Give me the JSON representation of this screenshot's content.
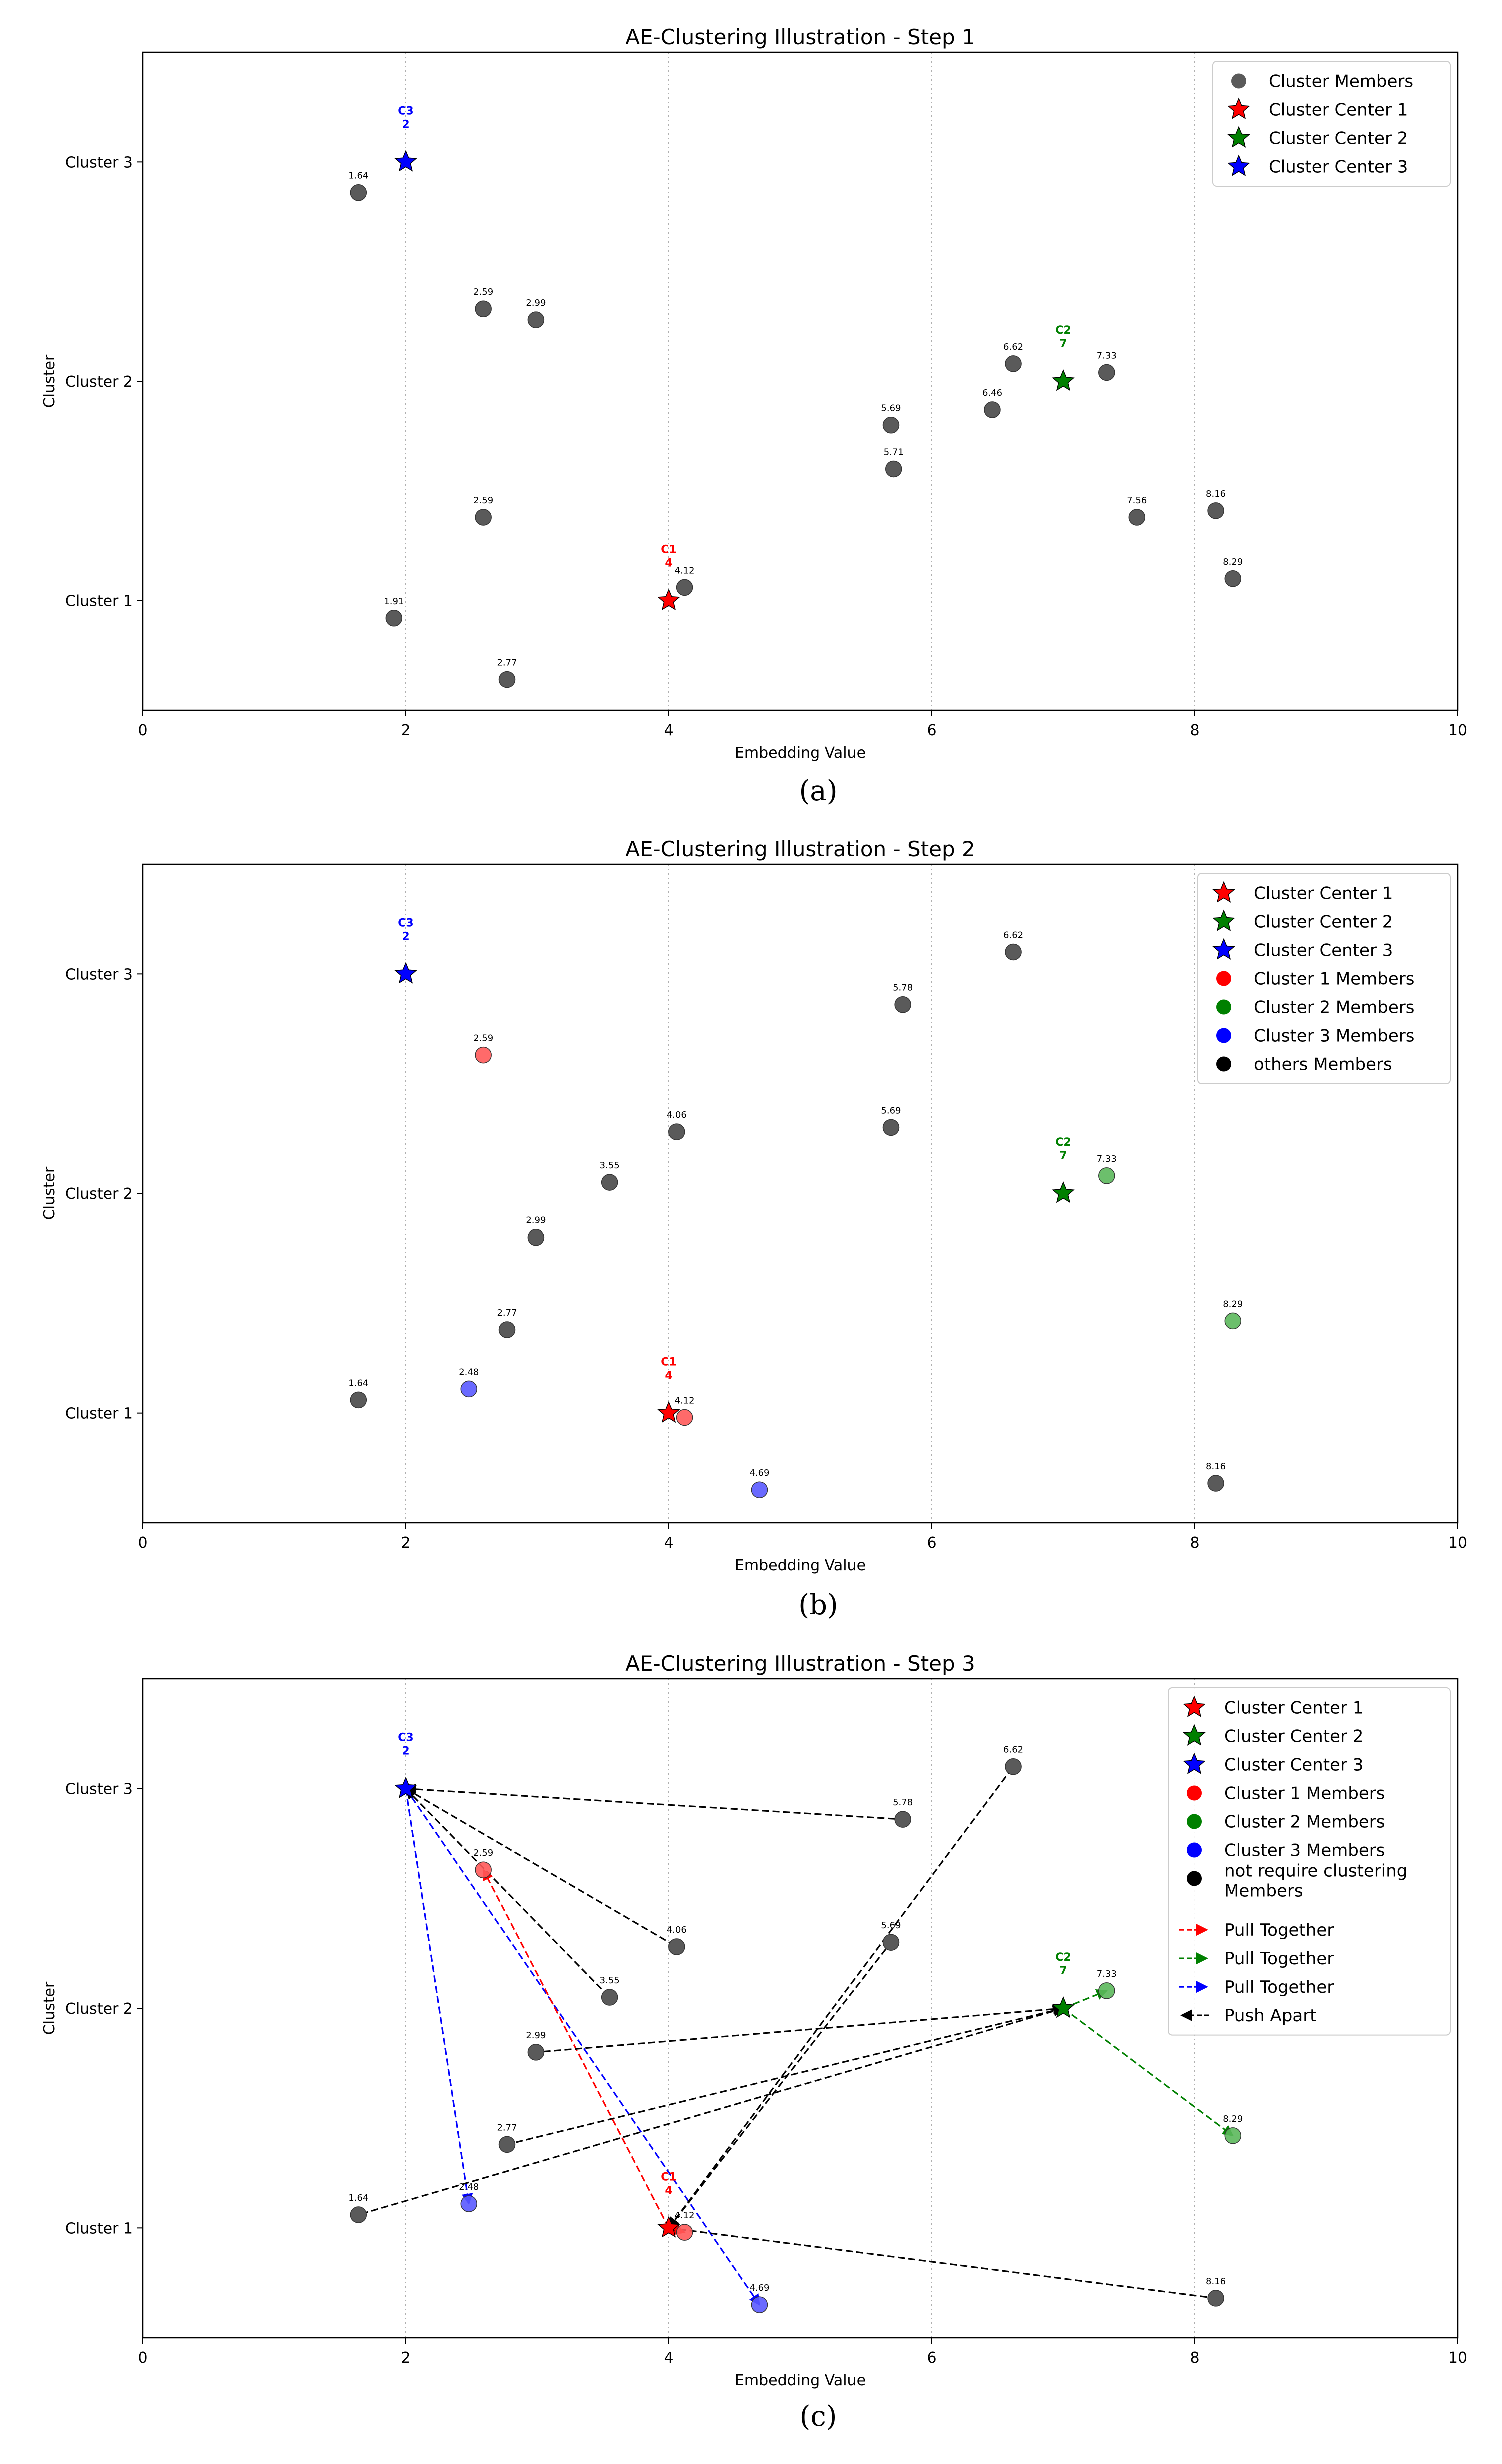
{
  "chart_data": [
    {
      "type": "scatter",
      "title": "AE-Clustering Illustration - Step 1",
      "xlabel": "Embedding Value",
      "ylabel": "Cluster",
      "xlim": [
        0,
        10
      ],
      "ylim": [
        0.5,
        3.5
      ],
      "xticks": [
        "0",
        "2",
        "4",
        "6",
        "8",
        "10"
      ],
      "yticks": [
        {
          "value": 1,
          "label": "Cluster 1"
        },
        {
          "value": 2,
          "label": "Cluster 2"
        },
        {
          "value": 3,
          "label": "Cluster 3"
        }
      ],
      "grid": "vertical dotted",
      "legend_position": "top-right",
      "caption": "(a)",
      "legend": [
        {
          "label": "Cluster Members",
          "marker": "circle",
          "color": "#5a5a5a"
        },
        {
          "label": "Cluster Center 1",
          "marker": "star",
          "color": "#ff0000"
        },
        {
          "label": "Cluster Center 2",
          "marker": "star",
          "color": "#008000"
        },
        {
          "label": "Cluster Center 3",
          "marker": "star",
          "color": "#0000ff"
        }
      ],
      "centers": [
        {
          "name": "C1",
          "value": "4",
          "x": 4,
          "y": 1,
          "color": "#ff0000"
        },
        {
          "name": "C2",
          "value": "7",
          "x": 7,
          "y": 2,
          "color": "#008000"
        },
        {
          "name": "C3",
          "value": "2",
          "x": 2,
          "y": 3,
          "color": "#0000ff"
        }
      ],
      "points": [
        {
          "x": 1.64,
          "y": 2.86,
          "label": "1.64",
          "group": "other"
        },
        {
          "x": 2.59,
          "y": 2.33,
          "label": "2.59",
          "group": "other"
        },
        {
          "x": 2.99,
          "y": 2.28,
          "label": "2.99",
          "group": "other"
        },
        {
          "x": 6.62,
          "y": 2.08,
          "label": "6.62",
          "group": "other"
        },
        {
          "x": 7.33,
          "y": 2.04,
          "label": "7.33",
          "group": "other"
        },
        {
          "x": 6.46,
          "y": 1.87,
          "label": "6.46",
          "group": "other"
        },
        {
          "x": 5.69,
          "y": 1.8,
          "label": "5.69",
          "group": "other"
        },
        {
          "x": 5.71,
          "y": 1.6,
          "label": "5.71",
          "group": "other"
        },
        {
          "x": 2.59,
          "y": 1.38,
          "label": "2.59",
          "group": "other"
        },
        {
          "x": 7.56,
          "y": 1.38,
          "label": "7.56",
          "group": "other"
        },
        {
          "x": 8.16,
          "y": 1.41,
          "label": "8.16",
          "group": "other"
        },
        {
          "x": 8.29,
          "y": 1.1,
          "label": "8.29",
          "group": "other"
        },
        {
          "x": 4.12,
          "y": 1.06,
          "label": "4.12",
          "group": "other"
        },
        {
          "x": 1.91,
          "y": 0.92,
          "label": "1.91",
          "group": "other"
        },
        {
          "x": 2.77,
          "y": 0.64,
          "label": "2.77",
          "group": "other"
        }
      ],
      "arrows": []
    },
    {
      "type": "scatter",
      "title": "AE-Clustering Illustration - Step 2",
      "xlabel": "Embedding Value",
      "ylabel": "Cluster",
      "xlim": [
        0,
        10
      ],
      "ylim": [
        0.5,
        3.5
      ],
      "xticks": [
        "0",
        "2",
        "4",
        "6",
        "8",
        "10"
      ],
      "yticks": [
        {
          "value": 1,
          "label": "Cluster 1"
        },
        {
          "value": 2,
          "label": "Cluster 2"
        },
        {
          "value": 3,
          "label": "Cluster 3"
        }
      ],
      "grid": "vertical dotted",
      "legend_position": "top-right",
      "caption": "(b)",
      "legend": [
        {
          "label": "Cluster Center 1",
          "marker": "star",
          "color": "#ff0000"
        },
        {
          "label": "Cluster Center 2",
          "marker": "star",
          "color": "#008000"
        },
        {
          "label": "Cluster Center 3",
          "marker": "star",
          "color": "#0000ff"
        },
        {
          "label": "Cluster 1 Members",
          "marker": "circle",
          "color": "#ff0000"
        },
        {
          "label": "Cluster 2 Members",
          "marker": "circle",
          "color": "#008000"
        },
        {
          "label": "Cluster 3 Members",
          "marker": "circle",
          "color": "#0000ff"
        },
        {
          "label": "others Members",
          "marker": "circle",
          "color": "#000000"
        }
      ],
      "centers": [
        {
          "name": "C1",
          "value": "4",
          "x": 4,
          "y": 1,
          "color": "#ff0000"
        },
        {
          "name": "C2",
          "value": "7",
          "x": 7,
          "y": 2,
          "color": "#008000"
        },
        {
          "name": "C3",
          "value": "2",
          "x": 2,
          "y": 3,
          "color": "#0000ff"
        }
      ],
      "points": [
        {
          "x": 6.62,
          "y": 3.1,
          "label": "6.62",
          "group": "other"
        },
        {
          "x": 5.78,
          "y": 2.86,
          "label": "5.78",
          "group": "other"
        },
        {
          "x": 2.59,
          "y": 2.63,
          "label": "2.59",
          "group": "c1"
        },
        {
          "x": 4.06,
          "y": 2.28,
          "label": "4.06",
          "group": "other"
        },
        {
          "x": 5.69,
          "y": 2.3,
          "label": "5.69",
          "group": "other"
        },
        {
          "x": 3.55,
          "y": 2.05,
          "label": "3.55",
          "group": "other"
        },
        {
          "x": 7.33,
          "y": 2.08,
          "label": "7.33",
          "group": "c2"
        },
        {
          "x": 2.99,
          "y": 1.8,
          "label": "2.99",
          "group": "other"
        },
        {
          "x": 2.77,
          "y": 1.38,
          "label": "2.77",
          "group": "other"
        },
        {
          "x": 8.29,
          "y": 1.42,
          "label": "8.29",
          "group": "c2"
        },
        {
          "x": 2.48,
          "y": 1.11,
          "label": "2.48",
          "group": "c3"
        },
        {
          "x": 1.64,
          "y": 1.06,
          "label": "1.64",
          "group": "other"
        },
        {
          "x": 4.12,
          "y": 0.98,
          "label": "4.12",
          "group": "c1"
        },
        {
          "x": 4.69,
          "y": 0.65,
          "label": "4.69",
          "group": "c3"
        },
        {
          "x": 8.16,
          "y": 0.68,
          "label": "8.16",
          "group": "other"
        }
      ],
      "arrows": []
    },
    {
      "type": "scatter",
      "title": "AE-Clustering Illustration - Step 3",
      "xlabel": "Embedding Value",
      "ylabel": "Cluster",
      "xlim": [
        0,
        10
      ],
      "ylim": [
        0.5,
        3.5
      ],
      "xticks": [
        "0",
        "2",
        "4",
        "6",
        "8",
        "10"
      ],
      "yticks": [
        {
          "value": 1,
          "label": "Cluster 1"
        },
        {
          "value": 2,
          "label": "Cluster 2"
        },
        {
          "value": 3,
          "label": "Cluster 3"
        }
      ],
      "grid": "vertical dotted",
      "legend_position": "top-right",
      "caption": "(c)",
      "legend": [
        {
          "label": "Cluster Center 1",
          "marker": "star",
          "color": "#ff0000"
        },
        {
          "label": "Cluster Center 2",
          "marker": "star",
          "color": "#008000"
        },
        {
          "label": "Cluster Center 3",
          "marker": "star",
          "color": "#0000ff"
        },
        {
          "label": "Cluster 1 Members",
          "marker": "circle",
          "color": "#ff0000"
        },
        {
          "label": "Cluster 2 Members",
          "marker": "circle",
          "color": "#008000"
        },
        {
          "label": "Cluster 3 Members",
          "marker": "circle",
          "color": "#0000ff"
        },
        {
          "label": "not require clustering",
          "label2": "Members",
          "marker": "circle",
          "color": "#000000"
        },
        {
          "label": "Pull Together",
          "marker": "arrow",
          "color": "#ff0000"
        },
        {
          "label": "Pull Together",
          "marker": "arrow",
          "color": "#008000"
        },
        {
          "label": "Pull Together",
          "marker": "arrow",
          "color": "#0000ff"
        },
        {
          "label": "Push Apart",
          "marker": "arrow-left",
          "color": "#000000"
        }
      ],
      "centers": [
        {
          "name": "C1",
          "value": "4",
          "x": 4,
          "y": 1,
          "color": "#ff0000"
        },
        {
          "name": "C2",
          "value": "7",
          "x": 7,
          "y": 2,
          "color": "#008000"
        },
        {
          "name": "C3",
          "value": "2",
          "x": 2,
          "y": 3,
          "color": "#0000ff"
        }
      ],
      "points": [
        {
          "x": 6.62,
          "y": 3.1,
          "label": "6.62",
          "group": "other"
        },
        {
          "x": 5.78,
          "y": 2.86,
          "label": "5.78",
          "group": "other"
        },
        {
          "x": 2.59,
          "y": 2.63,
          "label": "2.59",
          "group": "c1"
        },
        {
          "x": 4.06,
          "y": 2.28,
          "label": "4.06",
          "group": "other"
        },
        {
          "x": 5.69,
          "y": 2.3,
          "label": "5.69",
          "group": "other"
        },
        {
          "x": 3.55,
          "y": 2.05,
          "label": "3.55",
          "group": "other"
        },
        {
          "x": 7.33,
          "y": 2.08,
          "label": "7.33",
          "group": "c2"
        },
        {
          "x": 2.99,
          "y": 1.8,
          "label": "2.99",
          "group": "other"
        },
        {
          "x": 2.77,
          "y": 1.38,
          "label": "2.77",
          "group": "other"
        },
        {
          "x": 8.29,
          "y": 1.42,
          "label": "8.29",
          "group": "c2"
        },
        {
          "x": 2.48,
          "y": 1.11,
          "label": "2.48",
          "group": "c3"
        },
        {
          "x": 1.64,
          "y": 1.06,
          "label": "1.64",
          "group": "other"
        },
        {
          "x": 4.12,
          "y": 0.98,
          "label": "4.12",
          "group": "c1"
        },
        {
          "x": 4.69,
          "y": 0.65,
          "label": "4.69",
          "group": "c3"
        },
        {
          "x": 8.16,
          "y": 0.68,
          "label": "8.16",
          "group": "other"
        }
      ],
      "arrows": [
        {
          "from": [
            2,
            3
          ],
          "to": [
            5.78,
            2.86
          ],
          "kind": "push",
          "color": "#000000"
        },
        {
          "from": [
            2,
            3
          ],
          "to": [
            4.06,
            2.28
          ],
          "kind": "push",
          "color": "#000000"
        },
        {
          "from": [
            2,
            3
          ],
          "to": [
            3.55,
            2.05
          ],
          "kind": "push",
          "color": "#000000"
        },
        {
          "from": [
            2,
            3
          ],
          "to": [
            2.48,
            1.11
          ],
          "kind": "pull",
          "color": "#0000ff"
        },
        {
          "from": [
            2,
            3
          ],
          "to": [
            4.69,
            0.65
          ],
          "kind": "pull",
          "color": "#0000ff"
        },
        {
          "from": [
            4,
            1
          ],
          "to": [
            6.62,
            3.1
          ],
          "kind": "push",
          "color": "#000000"
        },
        {
          "from": [
            4,
            1
          ],
          "to": [
            5.69,
            2.3
          ],
          "kind": "push",
          "color": "#000000"
        },
        {
          "from": [
            4,
            1
          ],
          "to": [
            8.16,
            0.68
          ],
          "kind": "push",
          "color": "#000000"
        },
        {
          "from": [
            4,
            1
          ],
          "to": [
            2.59,
            2.63
          ],
          "kind": "pull",
          "color": "#ff0000"
        },
        {
          "from": [
            4,
            1
          ],
          "to": [
            4.12,
            0.98
          ],
          "kind": "pull",
          "color": "#ff0000"
        },
        {
          "from": [
            7,
            2
          ],
          "to": [
            2.99,
            1.8
          ],
          "kind": "push",
          "color": "#000000"
        },
        {
          "from": [
            7,
            2
          ],
          "to": [
            2.77,
            1.38
          ],
          "kind": "push",
          "color": "#000000"
        },
        {
          "from": [
            7,
            2
          ],
          "to": [
            1.64,
            1.06
          ],
          "kind": "push",
          "color": "#000000"
        },
        {
          "from": [
            7,
            2
          ],
          "to": [
            7.33,
            2.08
          ],
          "kind": "pull",
          "color": "#008000"
        },
        {
          "from": [
            7,
            2
          ],
          "to": [
            8.29,
            1.42
          ],
          "kind": "pull",
          "color": "#008000"
        }
      ]
    }
  ],
  "colors": {
    "other": "#5a5a5a",
    "c1": "#ff5a5a",
    "c2": "#5cb85c",
    "c3": "#5a5aff"
  }
}
